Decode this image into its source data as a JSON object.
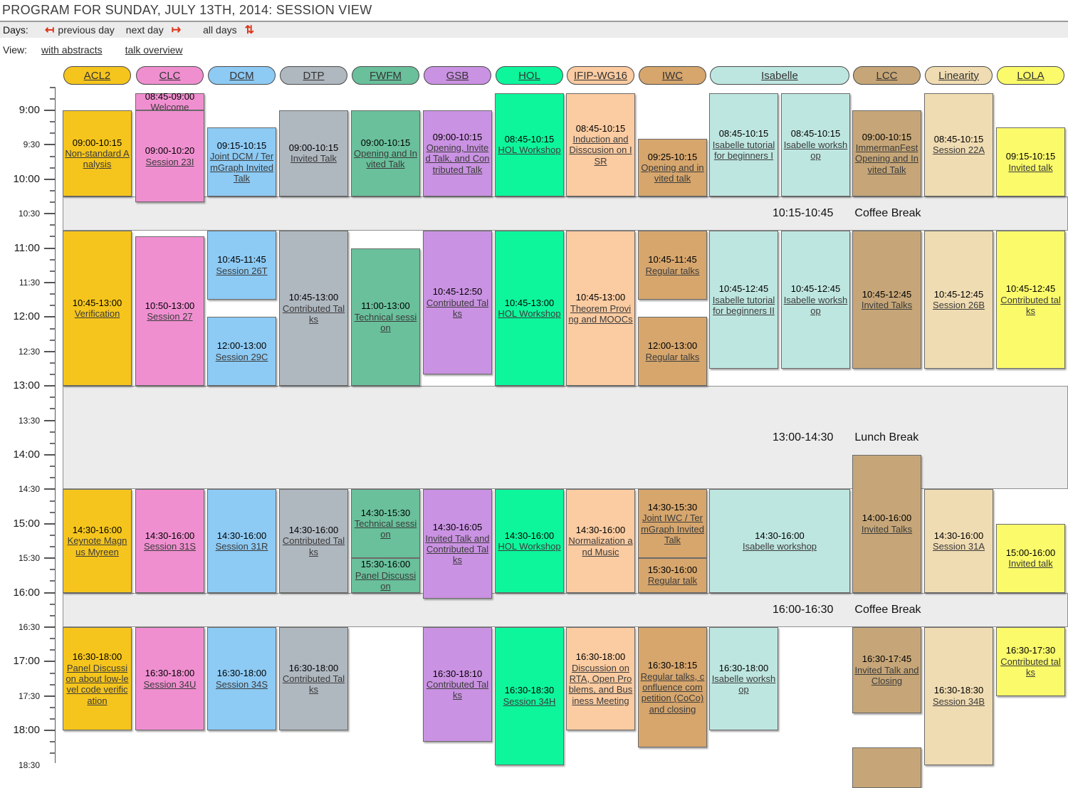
{
  "page": {
    "title": "PROGRAM FOR SUNDAY, JULY 13TH, 2014: SESSION VIEW"
  },
  "nav": {
    "days_label": "Days:",
    "prev_day": "previous day",
    "next_day": "next day",
    "all_days": "all days",
    "view_label": "View:",
    "with_abstracts": "with abstracts",
    "talk_overview": "talk overview",
    "icons": {
      "prev_day": "↤",
      "next_day": "↦",
      "all_days": "⇅"
    },
    "accent_red": "#de3418"
  },
  "timeline": {
    "labels": [
      "9:00",
      "9:30",
      "10:00",
      "10:30",
      "11:00",
      "11:30",
      "12:00",
      "12:30",
      "13:00",
      "13:30",
      "14:00",
      "14:30",
      "15:00",
      "15:30",
      "16:00",
      "16:30",
      "17:00",
      "17:30",
      "18:00",
      "18:30"
    ]
  },
  "breaks": [
    {
      "time": "10:15-10:45",
      "label": "Coffee Break"
    },
    {
      "time": "13:00-14:30",
      "label": "Lunch Break"
    },
    {
      "time": "16:00-16:30",
      "label": "Coffee Break"
    }
  ],
  "columns": [
    {
      "id": "ACL2",
      "color": "#F5C51D",
      "header": {
        "label": "ACL2"
      },
      "events": [
        {
          "time": "09:00-10:15",
          "title": "Non-standard Analysis"
        },
        {
          "time": "10:45-13:00",
          "title": "Verification"
        },
        {
          "time": "14:30-16:00",
          "title": "Keynote Magnus Myreen"
        },
        {
          "time": "16:30-18:00",
          "title": "Panel Discussion about low-level code verification"
        }
      ]
    },
    {
      "id": "CLC",
      "color": "#F08FD0",
      "header": {
        "label": "CLC"
      },
      "events": [
        {
          "time": "08:45-09:00",
          "title": "Welcome"
        },
        {
          "time": "09:00-10:20",
          "title": "Session 23I"
        },
        {
          "time": "10:50-13:00",
          "title": "Session 27"
        },
        {
          "time": "14:30-16:00",
          "title": "Session 31S"
        },
        {
          "time": "16:30-18:00",
          "title": "Session 34U"
        }
      ]
    },
    {
      "id": "DCM",
      "color": "#8DCAF4",
      "header": {
        "label": "DCM"
      },
      "events": [
        {
          "time": "09:15-10:15",
          "title": "Joint DCM / TermGraph Invited Talk"
        },
        {
          "time": "10:45-11:45",
          "title": "Session 26T"
        },
        {
          "time": "12:00-13:00",
          "title": "Session 29C"
        },
        {
          "time": "14:30-16:00",
          "title": "Session 31R"
        },
        {
          "time": "16:30-18:00",
          "title": "Session 34S"
        }
      ]
    },
    {
      "id": "DTP",
      "color": "#AFB7BF",
      "header": {
        "label": "DTP"
      },
      "events": [
        {
          "time": "09:00-10:15",
          "title": "Invited Talk"
        },
        {
          "time": "10:45-13:00",
          "title": "Contributed Talks"
        },
        {
          "time": "14:30-16:00",
          "title": "Contributed Talks"
        },
        {
          "time": "16:30-18:00",
          "title": "Contributed Talks"
        }
      ]
    },
    {
      "id": "FWFM",
      "color": "#69C09B",
      "header": {
        "label": "FWFM"
      },
      "events": [
        {
          "time": "09:00-10:15",
          "title": "Opening and Invited Talk"
        },
        {
          "time": "11:00-13:00",
          "title": "Technical session"
        },
        {
          "time": "14:30-15:30",
          "title": "Technical session"
        },
        {
          "time": "15:30-16:00",
          "title": "Panel Discussion"
        }
      ]
    },
    {
      "id": "GSB",
      "color": "#CA92E2",
      "header": {
        "label": "GSB"
      },
      "events": [
        {
          "time": "09:00-10:15",
          "title": "Opening, Invited Talk, and Contributed Talk"
        },
        {
          "time": "10:45-12:50",
          "title": "Contributed Talks"
        },
        {
          "time": "14:30-16:05",
          "title": "Invited Talk and Contributed Talks"
        },
        {
          "time": "16:30-18:10",
          "title": "Contributed Talks"
        }
      ]
    },
    {
      "id": "HOL",
      "color": "#0DF69C",
      "header": {
        "label": "HOL"
      },
      "events": [
        {
          "time": "08:45-10:15",
          "title": "HOL Workshop"
        },
        {
          "time": "10:45-13:00",
          "title": "HOL Workshop"
        },
        {
          "time": "14:30-16:00",
          "title": "HOL Workshop"
        },
        {
          "time": "16:30-18:30",
          "title": "Session 34H"
        }
      ]
    },
    {
      "id": "IFIP-WG16",
      "color": "#FBCBA1",
      "header": {
        "label": "IFIP-WG16"
      },
      "events": [
        {
          "time": "08:45-10:15",
          "title": "Induction and Disscusion on ISR"
        },
        {
          "time": "10:45-13:00",
          "title": "Theorem Proving and MOOCs"
        },
        {
          "time": "14:30-16:00",
          "title": "Normalization and Music"
        },
        {
          "time": "16:30-18:00",
          "title": "Discussion on RTA, Open Problems, and Business Meeting"
        }
      ]
    },
    {
      "id": "IWC",
      "color": "#D6A66D",
      "header": {
        "label": "IWC"
      },
      "events": [
        {
          "time": "09:25-10:15",
          "title": "Opening and invited talk"
        },
        {
          "time": "10:45-11:45",
          "title": "Regular talks"
        },
        {
          "time": "12:00-13:00",
          "title": "Regular talks"
        },
        {
          "time": "14:30-15:30",
          "title": "Joint IWC / TermGraph Invited Talk"
        },
        {
          "time": "15:30-16:00",
          "title": "Regular talk"
        },
        {
          "time": "16:30-18:15",
          "title": "Regular talks, confluence competition (CoCo) and closing"
        }
      ]
    },
    {
      "id": "Isabelle-A",
      "color": "#BEE6E0",
      "header": {
        "label": "Isabelle",
        "span": 2
      },
      "events": [
        {
          "time": "08:45-10:15",
          "title": "Isabelle tutorial for beginners I"
        },
        {
          "time": "10:45-12:45",
          "title": "Isabelle tutorial for beginners II"
        },
        {
          "time": "14:30-16:00",
          "title": "Isabelle workshop",
          "span": 2
        },
        {
          "time": "16:30-18:00",
          "title": "Isabelle workshop"
        }
      ]
    },
    {
      "id": "Isabelle-B",
      "color": "#BEE6E0",
      "events": [
        {
          "time": "08:45-10:15",
          "title": "Isabelle workshop"
        },
        {
          "time": "10:45-12:45",
          "title": "Isabelle workshop"
        }
      ]
    },
    {
      "id": "LCC",
      "color": "#C6A678",
      "header": {
        "label": "LCC"
      },
      "events": [
        {
          "time": "09:00-10:15",
          "title": "ImmermanFest Opening and Invited Talk"
        },
        {
          "time": "10:45-12:45",
          "title": "Invited Talks"
        },
        {
          "time": "14:00-16:00",
          "title": "Invited Talks"
        },
        {
          "time": "16:30-17:45",
          "title": "Invited Talk and Closing"
        },
        {
          "time": "",
          "title": "",
          "cut_top_min": 555,
          "cut_end_min": 590
        }
      ]
    },
    {
      "id": "Linearity",
      "color": "#F0DCB2",
      "header": {
        "label": "Linearity"
      },
      "events": [
        {
          "time": "08:45-10:15",
          "title": "Session 22A"
        },
        {
          "time": "10:45-12:45",
          "title": "Session 26B"
        },
        {
          "time": "14:30-16:00",
          "title": "Session 31A"
        },
        {
          "time": "16:30-18:30",
          "title": "Session 34B"
        }
      ]
    },
    {
      "id": "LOLA",
      "color": "#FAFA6B",
      "header": {
        "label": "LOLA"
      },
      "events": [
        {
          "time": "09:15-10:15",
          "title": "Invited talk"
        },
        {
          "time": "10:45-12:45",
          "title": "Contributed talks"
        },
        {
          "time": "15:00-16:00",
          "title": "Invited talk"
        },
        {
          "time": "16:30-17:30",
          "title": "Contributed talks"
        }
      ]
    }
  ]
}
